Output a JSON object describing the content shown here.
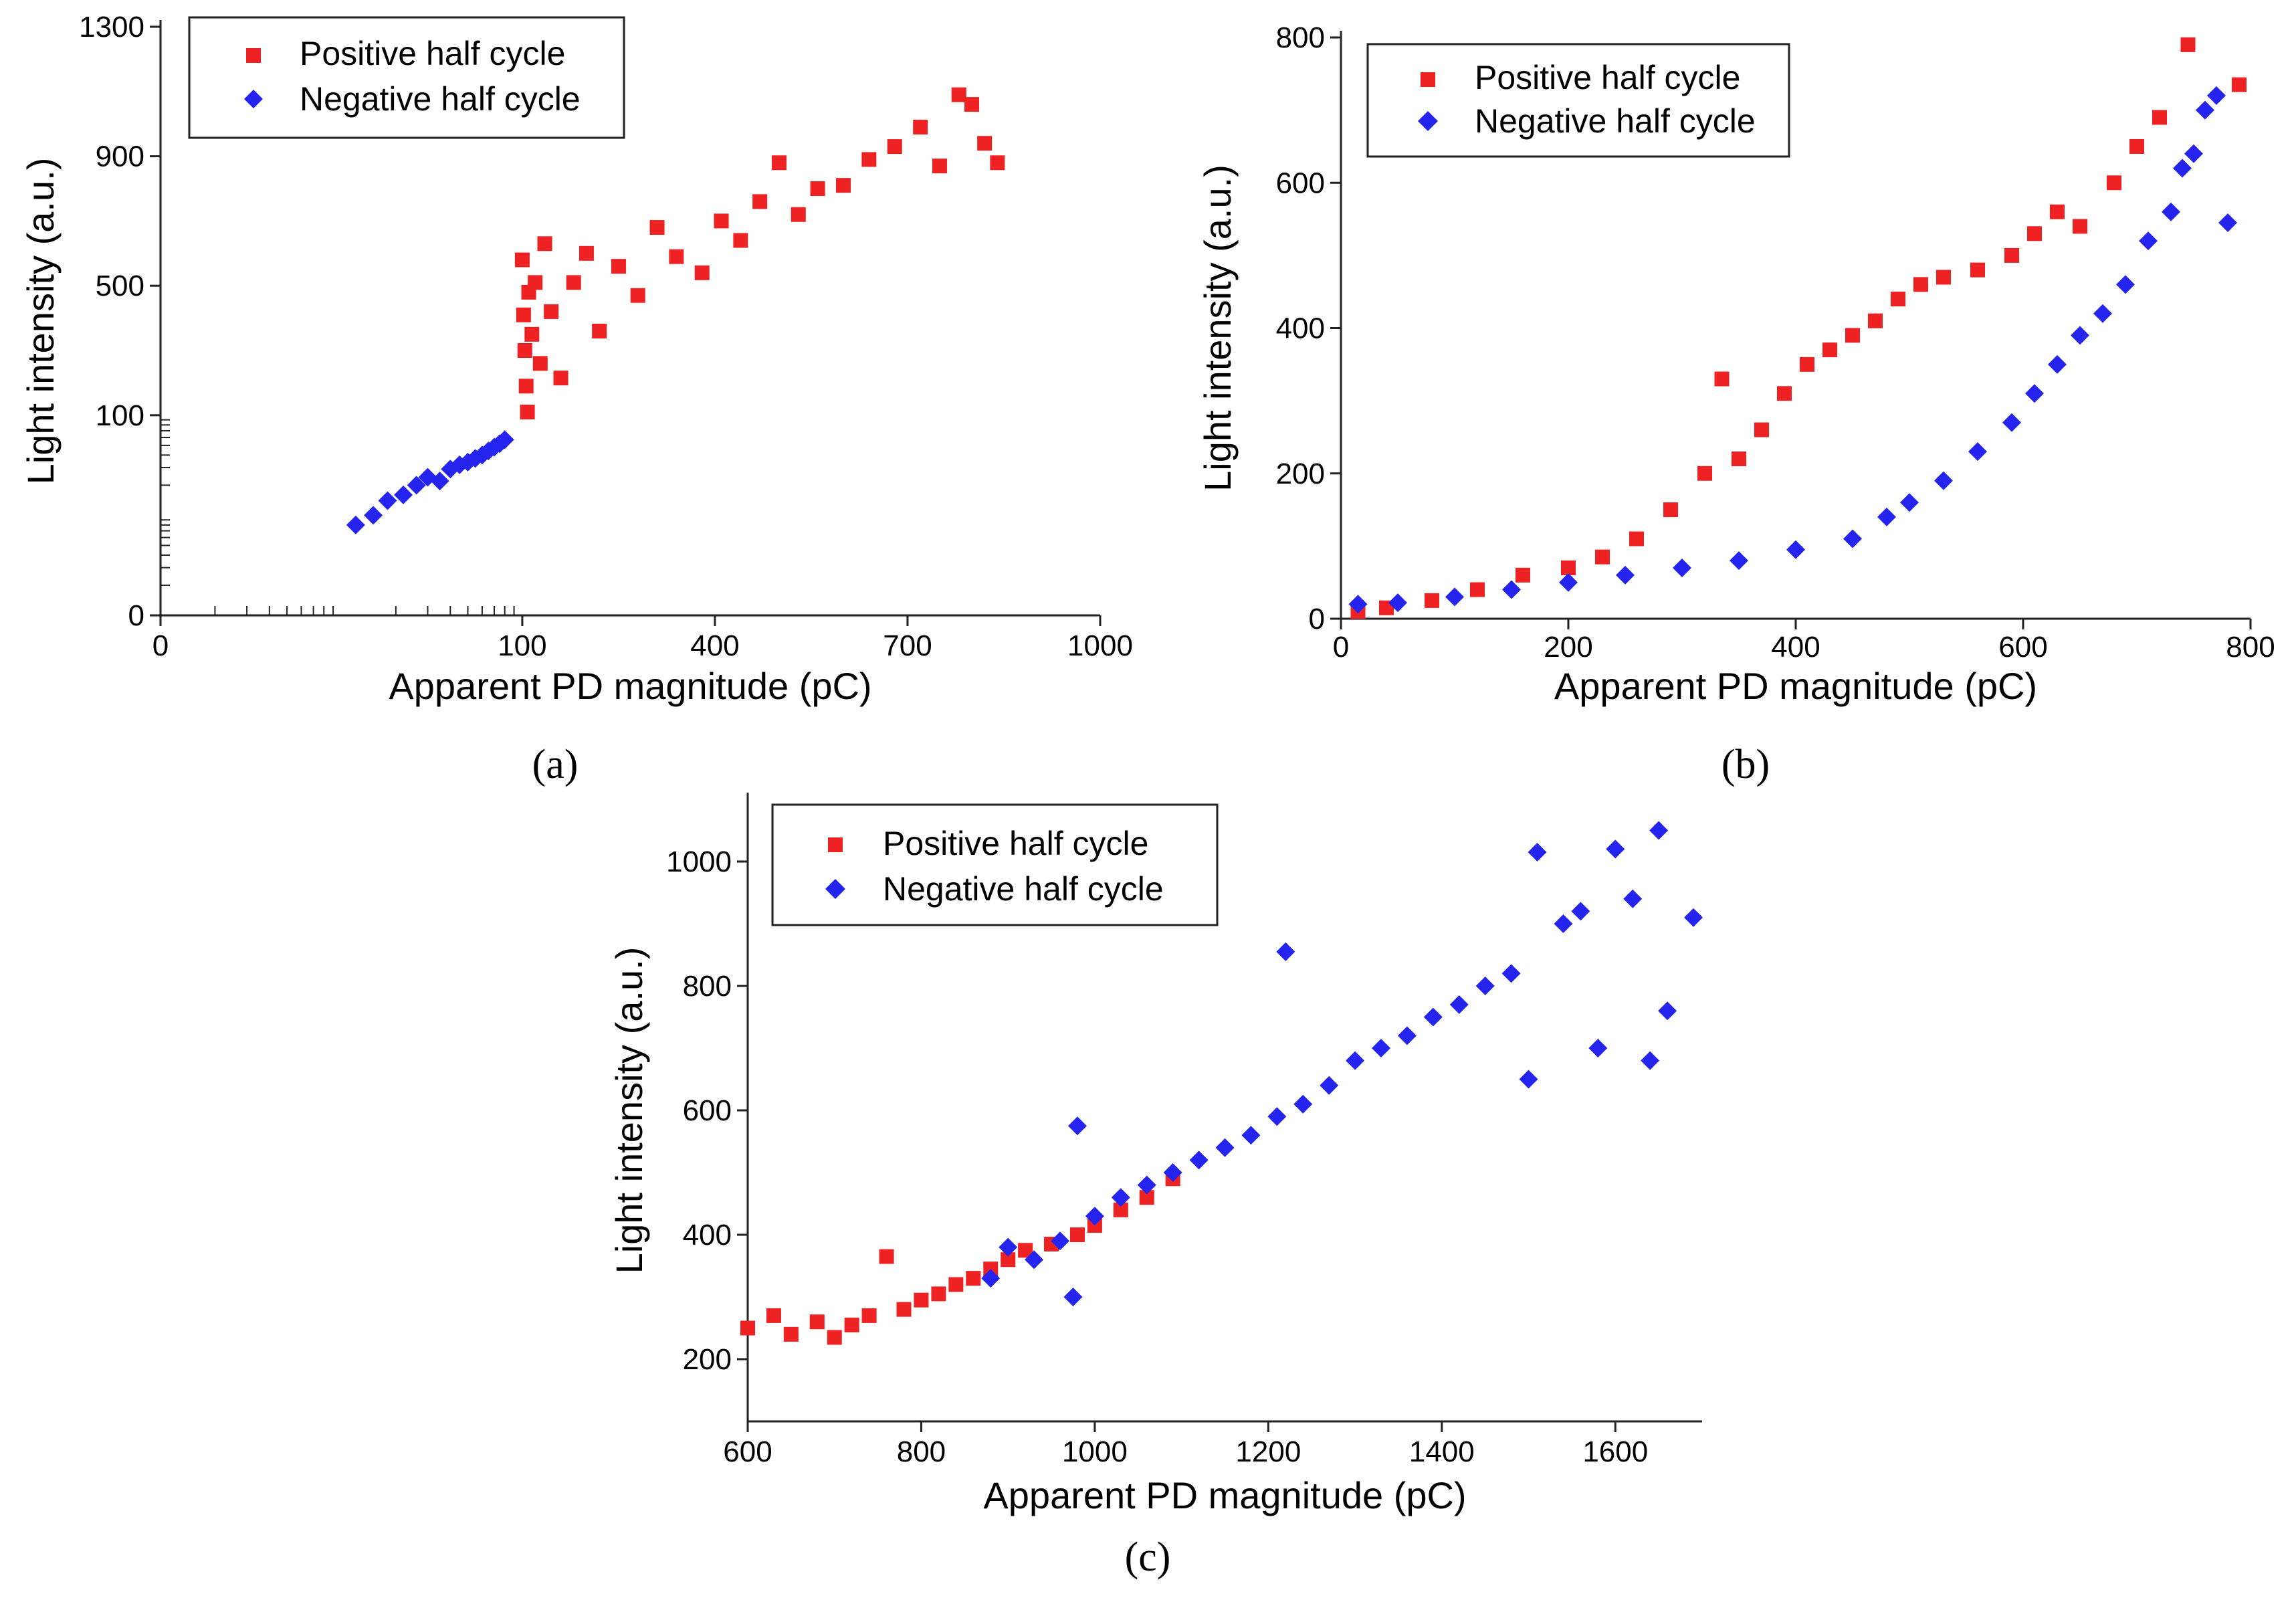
{
  "figure": {
    "colors": {
      "positive": "#ee2222",
      "negative": "#2424ee",
      "axis": "#222222"
    },
    "legend": {
      "positive": "Positive half cycle",
      "negative": "Negative half cycle"
    }
  },
  "chart_data": [
    {
      "id": "a",
      "caption": "(a)",
      "type": "scatter",
      "title": "",
      "xlabel": "Apparent PD magnitude (pC)",
      "ylabel": "Light intensity (a.u.)",
      "x_scale": "log-lower then linear-upper (broken axis)",
      "y_scale": "log-lower then linear-upper (broken axis)",
      "x_ticks": [
        "0",
        "100",
        "400",
        "700",
        "1000"
      ],
      "y_ticks": [
        "0",
        "100",
        "500",
        "900",
        "1300"
      ],
      "xlim": [
        0,
        1000
      ],
      "ylim": [
        0,
        1300
      ],
      "legend_position": "top-left",
      "series": [
        {
          "name": "Positive half cycle",
          "marker": "square",
          "color": "#ee2222",
          "points": [
            [
              100,
              580
            ],
            [
              102,
              410
            ],
            [
              104,
              300
            ],
            [
              106,
              190
            ],
            [
              108,
              110
            ],
            [
              110,
              480
            ],
            [
              115,
              350
            ],
            [
              120,
              510
            ],
            [
              128,
              260
            ],
            [
              135,
              630
            ],
            [
              145,
              420
            ],
            [
              160,
              215
            ],
            [
              180,
              510
            ],
            [
              200,
              600
            ],
            [
              220,
              360
            ],
            [
              250,
              560
            ],
            [
              280,
              470
            ],
            [
              310,
              680
            ],
            [
              340,
              590
            ],
            [
              380,
              540
            ],
            [
              410,
              700
            ],
            [
              440,
              640
            ],
            [
              470,
              760
            ],
            [
              500,
              880
            ],
            [
              530,
              720
            ],
            [
              560,
              800
            ],
            [
              600,
              810
            ],
            [
              640,
              890
            ],
            [
              680,
              930
            ],
            [
              720,
              990
            ],
            [
              750,
              870
            ],
            [
              780,
              1090
            ],
            [
              800,
              1060
            ],
            [
              820,
              940
            ],
            [
              840,
              880
            ]
          ]
        },
        {
          "name": "Negative half cycle",
          "marker": "diamond",
          "color": "#2424ee",
          "points": [
            [
              12,
              8
            ],
            [
              15,
              10
            ],
            [
              18,
              14
            ],
            [
              22,
              16
            ],
            [
              26,
              20
            ],
            [
              30,
              24
            ],
            [
              35,
              22
            ],
            [
              40,
              29
            ],
            [
              45,
              32
            ],
            [
              50,
              34
            ],
            [
              55,
              37
            ],
            [
              60,
              40
            ],
            [
              65,
              44
            ],
            [
              70,
              48
            ],
            [
              75,
              52
            ],
            [
              80,
              57
            ]
          ]
        }
      ]
    },
    {
      "id": "b",
      "caption": "(b)",
      "type": "scatter",
      "title": "",
      "xlabel": "Apparent PD magnitude (pC)",
      "ylabel": "Light intensity (a.u.)",
      "x_ticks": [
        "0",
        "200",
        "400",
        "600",
        "800"
      ],
      "y_ticks": [
        "0",
        "200",
        "400",
        "600",
        "800"
      ],
      "xlim": [
        0,
        800
      ],
      "ylim": [
        0,
        800
      ],
      "legend_position": "top-left",
      "series": [
        {
          "name": "Positive half cycle",
          "marker": "square",
          "color": "#ee2222",
          "points": [
            [
              15,
              10
            ],
            [
              40,
              15
            ],
            [
              80,
              25
            ],
            [
              120,
              40
            ],
            [
              160,
              60
            ],
            [
              200,
              70
            ],
            [
              230,
              85
            ],
            [
              260,
              110
            ],
            [
              290,
              150
            ],
            [
              320,
              200
            ],
            [
              335,
              330
            ],
            [
              350,
              220
            ],
            [
              370,
              260
            ],
            [
              390,
              310
            ],
            [
              410,
              350
            ],
            [
              430,
              370
            ],
            [
              450,
              390
            ],
            [
              470,
              410
            ],
            [
              490,
              440
            ],
            [
              510,
              460
            ],
            [
              530,
              470
            ],
            [
              560,
              480
            ],
            [
              590,
              500
            ],
            [
              610,
              530
            ],
            [
              630,
              560
            ],
            [
              650,
              540
            ],
            [
              680,
              600
            ],
            [
              700,
              650
            ],
            [
              720,
              690
            ],
            [
              745,
              790
            ],
            [
              790,
              735
            ]
          ]
        },
        {
          "name": "Negative half cycle",
          "marker": "diamond",
          "color": "#2424ee",
          "points": [
            [
              15,
              20
            ],
            [
              50,
              22
            ],
            [
              100,
              30
            ],
            [
              150,
              40
            ],
            [
              200,
              50
            ],
            [
              250,
              60
            ],
            [
              300,
              70
            ],
            [
              350,
              80
            ],
            [
              400,
              95
            ],
            [
              450,
              110
            ],
            [
              480,
              140
            ],
            [
              500,
              160
            ],
            [
              530,
              190
            ],
            [
              560,
              230
            ],
            [
              590,
              270
            ],
            [
              610,
              310
            ],
            [
              630,
              350
            ],
            [
              650,
              390
            ],
            [
              670,
              420
            ],
            [
              690,
              460
            ],
            [
              710,
              520
            ],
            [
              730,
              560
            ],
            [
              740,
              620
            ],
            [
              750,
              640
            ],
            [
              760,
              700
            ],
            [
              770,
              720
            ],
            [
              780,
              545
            ]
          ]
        }
      ]
    },
    {
      "id": "c",
      "caption": "(c)",
      "type": "scatter",
      "title": "",
      "xlabel": "Apparent PD magnitude (pC)",
      "ylabel": "Light intensity (a.u.)",
      "x_ticks": [
        "600",
        "800",
        "1000",
        "1200",
        "1400",
        "1600"
      ],
      "y_ticks": [
        "200",
        "400",
        "600",
        "800",
        "1000"
      ],
      "xlim": [
        600,
        1700
      ],
      "ylim": [
        100,
        1100
      ],
      "legend_position": "top-left",
      "series": [
        {
          "name": "Positive half cycle",
          "marker": "square",
          "color": "#ee2222",
          "points": [
            [
              600,
              250
            ],
            [
              630,
              270
            ],
            [
              650,
              240
            ],
            [
              680,
              260
            ],
            [
              700,
              235
            ],
            [
              720,
              255
            ],
            [
              740,
              270
            ],
            [
              760,
              365
            ],
            [
              780,
              280
            ],
            [
              800,
              295
            ],
            [
              820,
              305
            ],
            [
              840,
              320
            ],
            [
              860,
              330
            ],
            [
              880,
              345
            ],
            [
              900,
              360
            ],
            [
              920,
              375
            ],
            [
              950,
              385
            ],
            [
              980,
              400
            ],
            [
              1000,
              415
            ],
            [
              1030,
              440
            ],
            [
              1060,
              460
            ],
            [
              1090,
              490
            ]
          ]
        },
        {
          "name": "Negative half cycle",
          "marker": "diamond",
          "color": "#2424ee",
          "points": [
            [
              880,
              330
            ],
            [
              900,
              380
            ],
            [
              930,
              360
            ],
            [
              960,
              390
            ],
            [
              975,
              300
            ],
            [
              980,
              575
            ],
            [
              1000,
              430
            ],
            [
              1030,
              460
            ],
            [
              1060,
              480
            ],
            [
              1090,
              500
            ],
            [
              1120,
              520
            ],
            [
              1150,
              540
            ],
            [
              1180,
              560
            ],
            [
              1210,
              590
            ],
            [
              1220,
              855
            ],
            [
              1240,
              610
            ],
            [
              1270,
              640
            ],
            [
              1300,
              680
            ],
            [
              1330,
              700
            ],
            [
              1360,
              720
            ],
            [
              1390,
              750
            ],
            [
              1420,
              770
            ],
            [
              1450,
              800
            ],
            [
              1480,
              820
            ],
            [
              1500,
              650
            ],
            [
              1510,
              1015
            ],
            [
              1540,
              900
            ],
            [
              1560,
              920
            ],
            [
              1580,
              700
            ],
            [
              1600,
              1020
            ],
            [
              1620,
              940
            ],
            [
              1640,
              680
            ],
            [
              1650,
              1050
            ],
            [
              1660,
              760
            ],
            [
              1690,
              910
            ]
          ]
        }
      ]
    }
  ]
}
